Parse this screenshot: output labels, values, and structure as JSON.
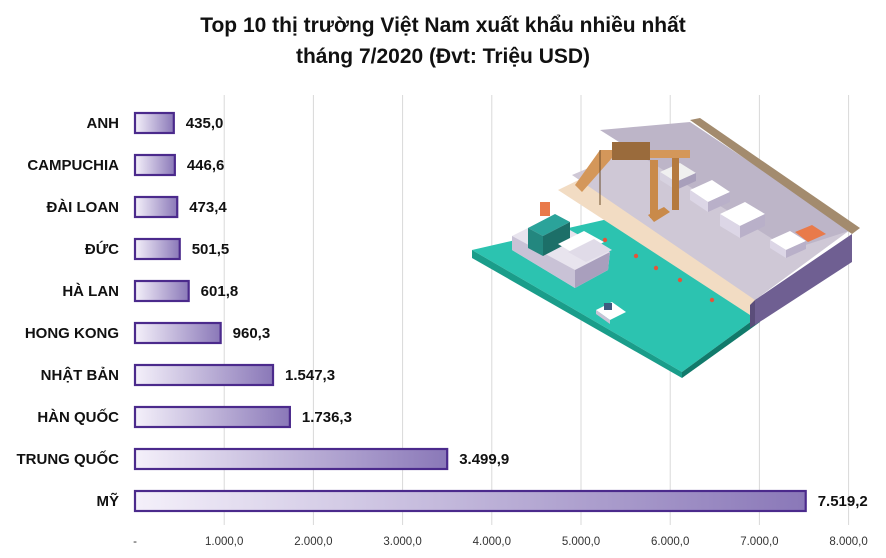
{
  "chart_data": {
    "type": "bar",
    "orientation": "horizontal",
    "title": "Top 10 thị trường Việt Nam xuất khẩu nhiều nhất",
    "subtitle": "tháng 7/2020 (Đvt: Triệu USD)",
    "categories": [
      "ANH",
      "CAMPUCHIA",
      "ĐÀI LOAN",
      "ĐỨC",
      "HÀ LAN",
      "HONG KONG",
      "NHẬT BẢN",
      "HÀN QUỐC",
      "TRUNG QUỐC",
      "MỸ"
    ],
    "values": [
      435.0,
      446.6,
      473.4,
      501.5,
      601.8,
      960.3,
      1547.3,
      1736.3,
      3499.9,
      7519.2
    ],
    "value_labels": [
      "435,0",
      "446,6",
      "473,4",
      "501,5",
      "601,8",
      "960,3",
      "1.547,3",
      "1.736,3",
      "3.499,9",
      "7.519,2"
    ],
    "xlim": [
      0,
      8000
    ],
    "x_ticks": [
      0,
      1000,
      2000,
      3000,
      4000,
      5000,
      6000,
      7000,
      8000
    ],
    "x_tick_labels": [
      "-",
      "1.000,0",
      "2.000,0",
      "3.000,0",
      "4.000,0",
      "5.000,0",
      "6.000,0",
      "7.000,0",
      "8.000,0"
    ],
    "grid": "vertical",
    "colors": {
      "bar_fill_start": "#f4f0fa",
      "bar_fill_end": "#8a78b8",
      "bar_border": "#4b2a8c",
      "grid": "#d9d9d9"
    }
  },
  "illustration": {
    "name": "isometric-seaport-illustration",
    "colors": {
      "sea": "#2cc3b0",
      "sea_dark": "#18967f",
      "dock": "#f2dcc3",
      "yard": "#cfc8d6",
      "wall": "#7a6a9a",
      "crane": "#c98a4a",
      "ship_hull": "#e8e4ee",
      "ship_top": "#2ba39a"
    }
  }
}
